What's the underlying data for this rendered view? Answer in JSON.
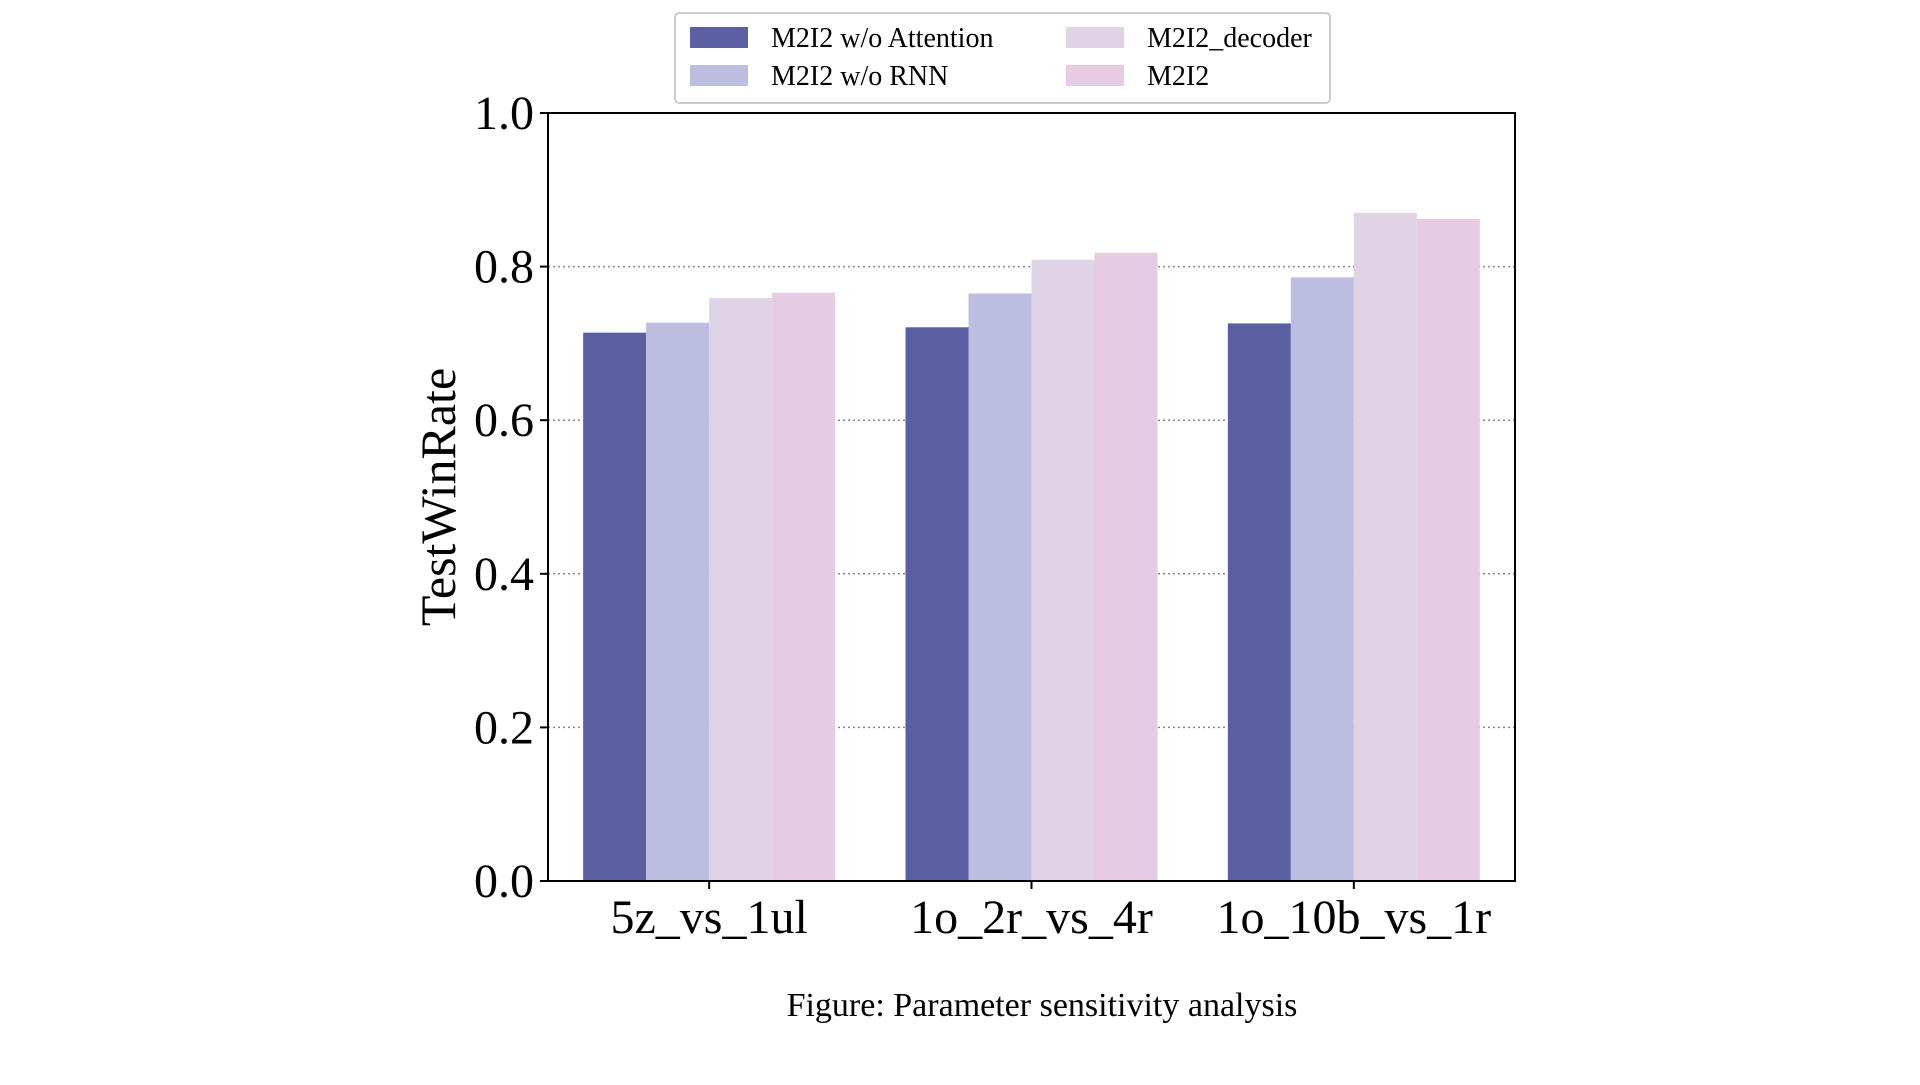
{
  "chart_data": {
    "type": "bar",
    "title": "",
    "xlabel": "",
    "ylabel": "TestWinRate",
    "ylim": [
      0,
      1.0
    ],
    "yticks": [
      "0.0",
      "0.2",
      "0.4",
      "0.6",
      "0.8",
      "1.0"
    ],
    "grid": "horizontal dotted",
    "legend_placement": "top-center",
    "categories": [
      "5z_vs_1ul",
      "1o_2r_vs_4r",
      "1o_10b_vs_1r"
    ],
    "series": [
      {
        "name": "M2I2 w/o Attention",
        "color": "#5a5fa1",
        "values": [
          0.714,
          0.721,
          0.726
        ]
      },
      {
        "name": "M2I2 w/o RNN",
        "color": "#bdbedf",
        "values": [
          0.727,
          0.765,
          0.786
        ]
      },
      {
        "name": "M2I2_decoder",
        "color": "#dfd3e6",
        "values": [
          0.759,
          0.809,
          0.87
        ]
      },
      {
        "name": "M2I2",
        "color": "#e6cbe2",
        "values": [
          0.766,
          0.818,
          0.862
        ]
      }
    ]
  },
  "caption": "Figure: Parameter sensitivity analysis"
}
